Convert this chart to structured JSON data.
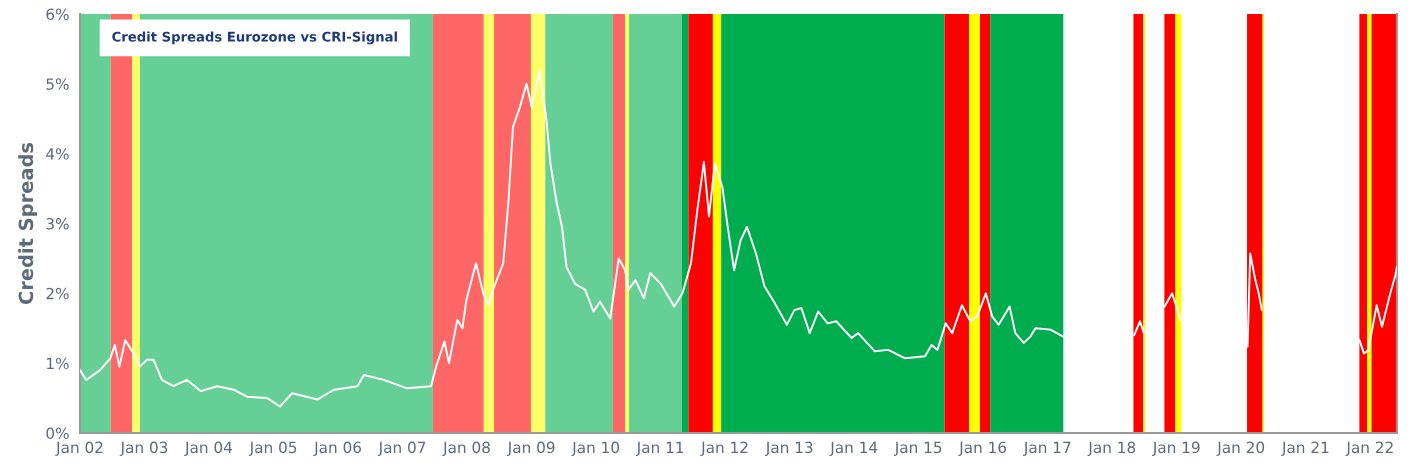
{
  "chart_data": {
    "type": "line",
    "title": "Credit Spreads Eurozone vs CRI-Signal",
    "ylabel": "Credit Spreads",
    "xlim": [
      "2002-01-01",
      "2022-06-01"
    ],
    "ylim": [
      0,
      6
    ],
    "xticks": [
      {
        "value": "2002-01-01",
        "label": "Jan 02"
      },
      {
        "value": "2003-01-01",
        "label": "Jan 03"
      },
      {
        "value": "2004-01-01",
        "label": "Jan 04"
      },
      {
        "value": "2005-01-01",
        "label": "Jan 05"
      },
      {
        "value": "2006-01-01",
        "label": "Jan 06"
      },
      {
        "value": "2007-01-01",
        "label": "Jan 07"
      },
      {
        "value": "2008-01-01",
        "label": "Jan 08"
      },
      {
        "value": "2009-01-01",
        "label": "Jan 09"
      },
      {
        "value": "2010-01-01",
        "label": "Jan 10"
      },
      {
        "value": "2011-01-01",
        "label": "Jan 11"
      },
      {
        "value": "2012-01-01",
        "label": "Jan 12"
      },
      {
        "value": "2013-01-01",
        "label": "Jan 13"
      },
      {
        "value": "2014-01-01",
        "label": "Jan 14"
      },
      {
        "value": "2015-01-01",
        "label": "Jan 15"
      },
      {
        "value": "2016-01-01",
        "label": "Jan 16"
      },
      {
        "value": "2017-01-01",
        "label": "Jan 17"
      },
      {
        "value": "2018-01-01",
        "label": "Jan 18"
      },
      {
        "value": "2019-01-01",
        "label": "Jan 19"
      },
      {
        "value": "2020-01-01",
        "label": "Jan 20"
      },
      {
        "value": "2021-01-01",
        "label": "Jan 21"
      },
      {
        "value": "2022-01-01",
        "label": "Jan 22"
      }
    ],
    "yticks": [
      {
        "value": 0,
        "label": "0%"
      },
      {
        "value": 1,
        "label": "1%"
      },
      {
        "value": 2,
        "label": "2%"
      },
      {
        "value": 3,
        "label": "3%"
      },
      {
        "value": 4,
        "label": "4%"
      },
      {
        "value": 5,
        "label": "5%"
      },
      {
        "value": 6,
        "label": "6%"
      }
    ],
    "grid": false,
    "legend": false,
    "marker": "none",
    "line_style": "solid",
    "bands": [
      {
        "axis": "x",
        "from": "2002-01-01",
        "to": "2002-06-24",
        "color": "#66cf96"
      },
      {
        "axis": "x",
        "from": "2002-06-24",
        "to": "2002-10-23",
        "color": "#ff6666"
      },
      {
        "axis": "x",
        "from": "2002-10-23",
        "to": "2002-12-06",
        "color": "#ffff66"
      },
      {
        "axis": "x",
        "from": "2002-12-06",
        "to": "2007-06-22",
        "color": "#66cf96"
      },
      {
        "axis": "x",
        "from": "2007-06-22",
        "to": "2008-04-05",
        "color": "#ff6666"
      },
      {
        "axis": "x",
        "from": "2008-04-05",
        "to": "2008-06-02",
        "color": "#ffff66"
      },
      {
        "axis": "x",
        "from": "2008-06-02",
        "to": "2008-12-28",
        "color": "#ff6666"
      },
      {
        "axis": "x",
        "from": "2008-12-28",
        "to": "2009-03-19",
        "color": "#ffff66"
      },
      {
        "axis": "x",
        "from": "2009-03-19",
        "to": "2010-04-06",
        "color": "#66cf96"
      },
      {
        "axis": "x",
        "from": "2010-04-06",
        "to": "2010-06-14",
        "color": "#ff6666"
      },
      {
        "axis": "x",
        "from": "2010-06-14",
        "to": "2010-07-06",
        "color": "#ffff66"
      },
      {
        "axis": "x",
        "from": "2010-07-06",
        "to": "2011-05-01",
        "color": "#66cf96"
      },
      {
        "axis": "x",
        "from": "2011-05-01",
        "to": "2011-06-07",
        "color": "#00ad4e"
      },
      {
        "axis": "x",
        "from": "2011-06-07",
        "to": "2011-10-24",
        "color": "#ff0000"
      },
      {
        "axis": "x",
        "from": "2011-10-24",
        "to": "2011-12-10",
        "color": "#ffff00"
      },
      {
        "axis": "x",
        "from": "2011-12-10",
        "to": "2015-05-27",
        "color": "#00ad4e"
      },
      {
        "axis": "x",
        "from": "2015-05-27",
        "to": "2015-10-13",
        "color": "#ff0000"
      },
      {
        "axis": "x",
        "from": "2015-10-13",
        "to": "2015-12-14",
        "color": "#ffff00"
      },
      {
        "axis": "x",
        "from": "2015-12-14",
        "to": "2016-02-10",
        "color": "#ff0000"
      },
      {
        "axis": "x",
        "from": "2016-02-10",
        "to": "2017-03-30",
        "color": "#00ad4e"
      },
      {
        "axis": "x",
        "from": "2018-05-01",
        "to": "2018-06-25",
        "color": "#ff0000"
      },
      {
        "axis": "x",
        "from": "2018-06-25",
        "to": "2018-07-06",
        "color": "#ffff00"
      },
      {
        "axis": "x",
        "from": "2018-10-23",
        "to": "2018-12-25",
        "color": "#ff0000"
      },
      {
        "axis": "x",
        "from": "2018-12-25",
        "to": "2019-01-27",
        "color": "#ffff00"
      },
      {
        "axis": "x",
        "from": "2020-02-03",
        "to": "2020-05-01",
        "color": "#ff0000"
      },
      {
        "axis": "x",
        "from": "2020-05-01",
        "to": "2020-05-09",
        "color": "#ffff00"
      },
      {
        "axis": "x",
        "from": "2021-10-31",
        "to": "2021-12-14",
        "color": "#ff0000"
      },
      {
        "axis": "x",
        "from": "2021-12-14",
        "to": "2022-01-08",
        "color": "#ffff00"
      },
      {
        "axis": "x",
        "from": "2022-01-08",
        "to": "2022-06-01",
        "color": "#ff0000"
      }
    ],
    "series": [
      {
        "color": "#ffffff",
        "x": [
          "2002-01-01",
          "2002-02-06",
          "2002-04-24",
          "2002-06-22",
          "2002-07-17",
          "2002-08-12",
          "2002-09-14",
          "2002-10-31",
          "2002-12-06",
          "2003-01-16",
          "2003-02-21",
          "2003-04-10",
          "2003-06-14",
          "2003-08-30",
          "2003-11-15",
          "2004-02-17",
          "2004-05-20",
          "2004-08-04",
          "2004-11-26",
          "2005-02-06",
          "2005-04-17",
          "2005-09-06",
          "2005-12-10",
          "2006-04-21",
          "2006-05-27",
          "2006-09-17",
          "2007-01-27",
          "2007-06-11",
          "2007-07-10",
          "2007-08-26",
          "2007-09-21",
          "2007-11-07",
          "2007-12-06",
          "2007-12-28",
          "2008-02-21",
          "2008-04-02",
          "2008-05-01",
          "2008-05-27",
          "2008-07-24",
          "2008-08-23",
          "2008-09-17",
          "2008-10-27",
          "2008-12-03",
          "2009-01-01",
          "2009-02-14",
          "2009-03-26",
          "2009-04-17",
          "2009-05-23",
          "2009-06-22",
          "2009-07-17",
          "2009-09-03",
          "2009-10-31",
          "2009-12-17",
          "2010-01-23",
          "2010-03-22",
          "2010-05-09",
          "2010-06-14",
          "2010-07-02",
          "2010-08-12",
          "2010-09-28",
          "2010-11-04",
          "2011-01-01",
          "2011-03-19",
          "2011-05-05",
          "2011-06-22",
          "2011-07-28",
          "2011-09-03",
          "2011-10-02",
          "2011-11-04",
          "2011-12-17",
          "2012-01-16",
          "2012-02-21",
          "2012-03-29",
          "2012-05-04",
          "2012-06-24",
          "2012-08-11",
          "2012-10-08",
          "2012-12-16",
          "2013-01-27",
          "2013-03-08",
          "2013-04-24",
          "2013-06-11",
          "2013-08-04",
          "2013-09-21",
          "2013-12-17",
          "2014-01-23",
          "2014-04-28",
          "2014-07-13",
          "2014-10-16",
          "2015-02-06",
          "2015-03-15",
          "2015-04-17",
          "2015-06-03",
          "2015-07-10",
          "2015-09-03",
          "2015-10-20",
          "2015-11-29",
          "2016-01-16",
          "2016-02-21",
          "2016-03-29",
          "2016-05-30",
          "2016-07-01",
          "2016-08-18",
          "2016-09-24",
          "2016-10-23",
          "2017-01-16",
          "2017-03-29",
          "2017-09-01",
          "2018-05-05",
          "2018-06-07",
          "2018-06-29",
          "2018-08-15",
          "2018-10-24",
          "2018-12-06",
          "2019-01-23",
          "2019-08-01",
          "2020-02-06",
          "2020-02-21",
          "2020-03-21",
          "2020-04-09",
          "2020-04-27",
          "2021-01-01",
          "2021-10-31",
          "2021-11-26",
          "2021-12-21",
          "2022-02-06",
          "2022-03-08",
          "2022-04-24",
          "2022-05-23",
          "2022-05-31"
        ],
        "values": [
          0.9,
          0.76,
          0.9,
          1.07,
          1.26,
          0.95,
          1.33,
          1.14,
          0.95,
          1.05,
          1.05,
          0.76,
          0.67,
          0.76,
          0.6,
          0.67,
          0.62,
          0.52,
          0.5,
          0.38,
          0.57,
          0.48,
          0.62,
          0.67,
          0.83,
          0.76,
          0.64,
          0.67,
          0.95,
          1.31,
          1.0,
          1.62,
          1.5,
          1.9,
          2.43,
          2.0,
          1.83,
          2.05,
          2.43,
          3.33,
          4.38,
          4.67,
          5.0,
          4.67,
          5.19,
          4.48,
          3.86,
          3.29,
          2.95,
          2.38,
          2.14,
          2.05,
          1.74,
          1.88,
          1.64,
          2.5,
          2.33,
          2.05,
          2.19,
          1.93,
          2.29,
          2.14,
          1.81,
          2.0,
          2.43,
          3.19,
          3.88,
          3.1,
          3.86,
          3.52,
          2.95,
          2.33,
          2.76,
          2.95,
          2.57,
          2.1,
          1.86,
          1.55,
          1.76,
          1.79,
          1.43,
          1.74,
          1.57,
          1.6,
          1.36,
          1.43,
          1.17,
          1.19,
          1.07,
          1.1,
          1.26,
          1.19,
          1.57,
          1.43,
          1.83,
          1.6,
          1.67,
          2.0,
          1.67,
          1.55,
          1.81,
          1.43,
          1.29,
          1.38,
          1.5,
          1.48,
          1.38,
          null,
          1.4,
          1.6,
          1.43,
          null,
          1.81,
          2.0,
          1.62,
          null,
          1.24,
          2.57,
          2.19,
          2.0,
          1.76,
          null,
          1.33,
          1.14,
          1.19,
          1.83,
          1.52,
          2.0,
          2.26,
          2.38
        ]
      }
    ]
  }
}
